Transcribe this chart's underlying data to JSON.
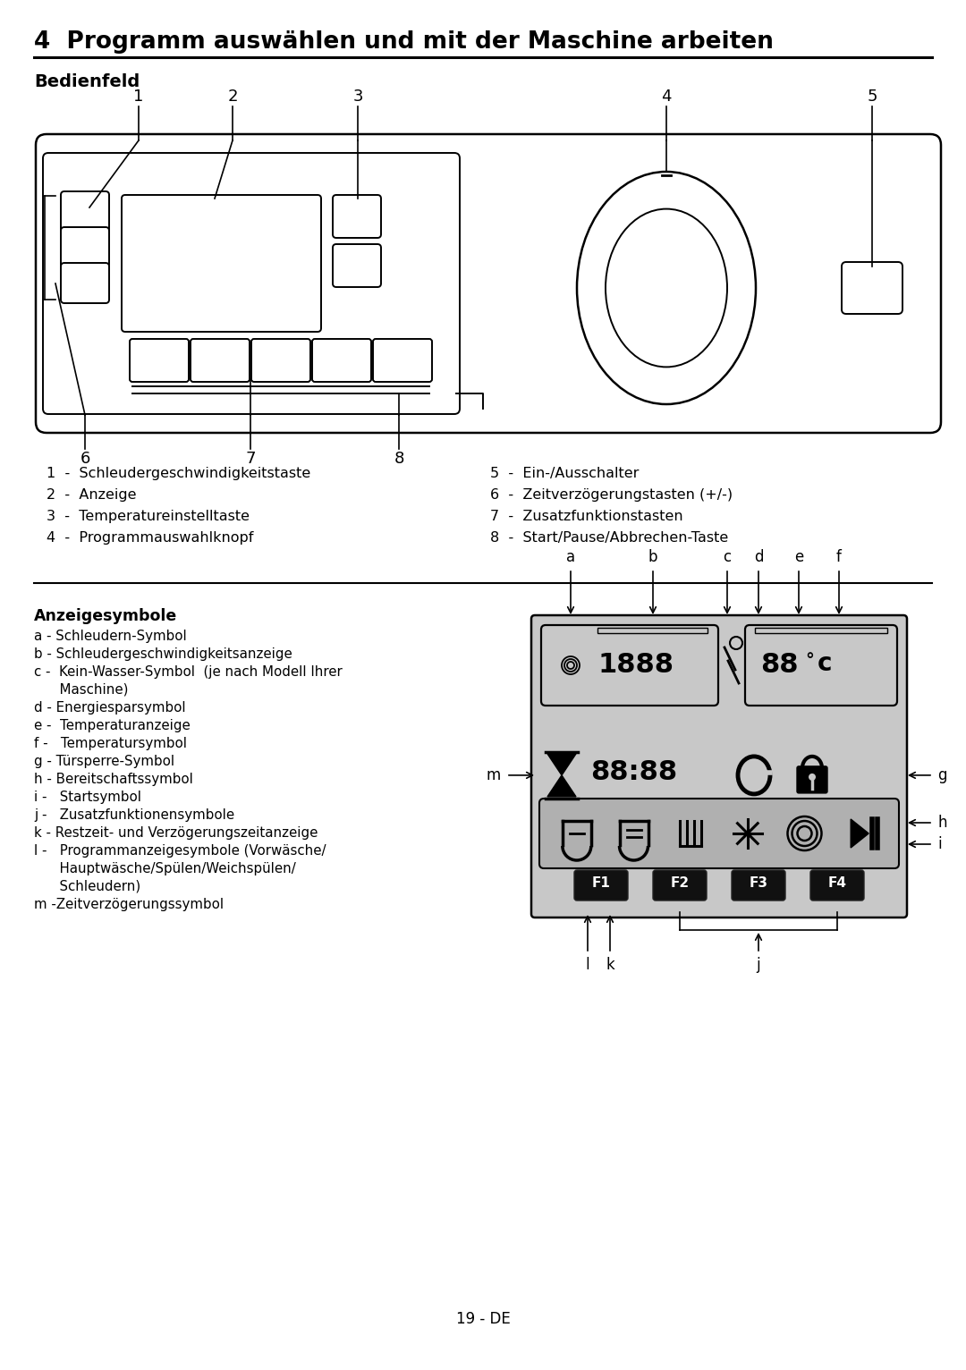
{
  "title": "4  Programm auswählen und mit der Maschine arbeiten",
  "subtitle": "Bedienfeld",
  "section2_title": "Anzeigesymbole",
  "left_labels": [
    "1  -  Schleudergeschwindigkeitstaste",
    "2  -  Anzeige",
    "3  -  Temperatureinstelltaste",
    "4  -  Programmauswahlknopf"
  ],
  "right_labels": [
    "5  -  Ein-/Ausschalter",
    "6  -  Zeitverzögerungstasten (+/-)",
    "7  -  Zusatzfunktionstasten",
    "8  -  Start/Pause/Abbrechen-Taste"
  ],
  "symbol_labels_line1": [
    "a - Schleudern-Symbol",
    "b - Schleudergeschwindigkeitsanzeige",
    "c -  Kein-Wasser-Symbol  (je nach Modell Ihrer",
    "     Maschine)",
    "d - Energiesparsymbol",
    "e -  Temperaturanzeige",
    "f -   Temperatursymbol",
    "g - Türsperre-Symbol",
    "h - Bereitschaftssymbol",
    "i -   Startsymbol",
    "j -   Zusatzfunktionensymbole",
    "k - Restzeit- und Verzögerungszeitanzeige",
    "l -   Programmanzeigesymbole (Vorwäsche/",
    "     Hauptwäsche/Spülen/Weichspülen/",
    "     Schleudern)",
    "m -Zeitverzögerungssymbol"
  ],
  "page_number": "19 - DE",
  "bg_color": "#ffffff",
  "text_color": "#000000",
  "line_color": "#000000"
}
